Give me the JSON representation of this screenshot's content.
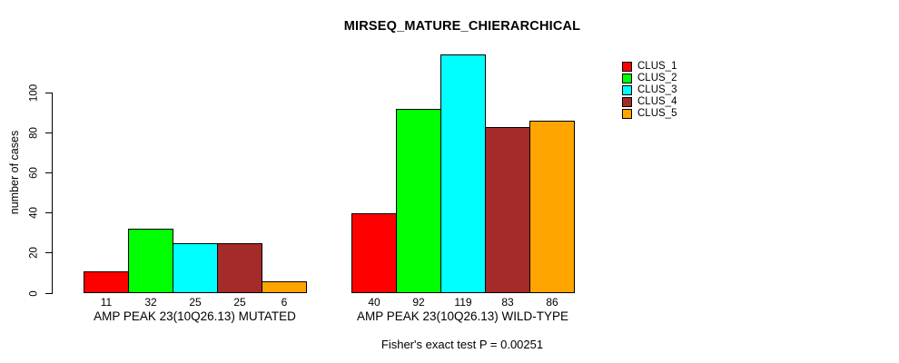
{
  "chart_data": {
    "type": "bar",
    "title": "MIRSEQ_MATURE_CHIERARCHICAL",
    "xlabel": "",
    "ylabel": "number of cases",
    "ylim": [
      0,
      100
    ],
    "yticks": [
      0,
      20,
      40,
      60,
      80,
      100
    ],
    "grid": false,
    "legend_position": "right",
    "bar_value_labels_shown": true,
    "categories": [
      "AMP PEAK 23(10Q26.13) MUTATED",
      "AMP PEAK 23(10Q26.13) WILD-TYPE"
    ],
    "series": [
      {
        "name": "CLUS_1",
        "color": "#FF0000",
        "values": [
          11,
          40
        ]
      },
      {
        "name": "CLUS_2",
        "color": "#00FF00",
        "values": [
          32,
          92
        ]
      },
      {
        "name": "CLUS_3",
        "color": "#00FFFF",
        "values": [
          25,
          119
        ]
      },
      {
        "name": "CLUS_4",
        "color": "#A52A2A",
        "values": [
          25,
          83
        ]
      },
      {
        "name": "CLUS_5",
        "color": "#FFA500",
        "values": [
          6,
          86
        ]
      }
    ],
    "annotation": "Fisher's exact test P = 0.00251"
  },
  "colors": {
    "background": "#FFFFFF",
    "axis": "#000000",
    "bar_border": "#000000"
  }
}
